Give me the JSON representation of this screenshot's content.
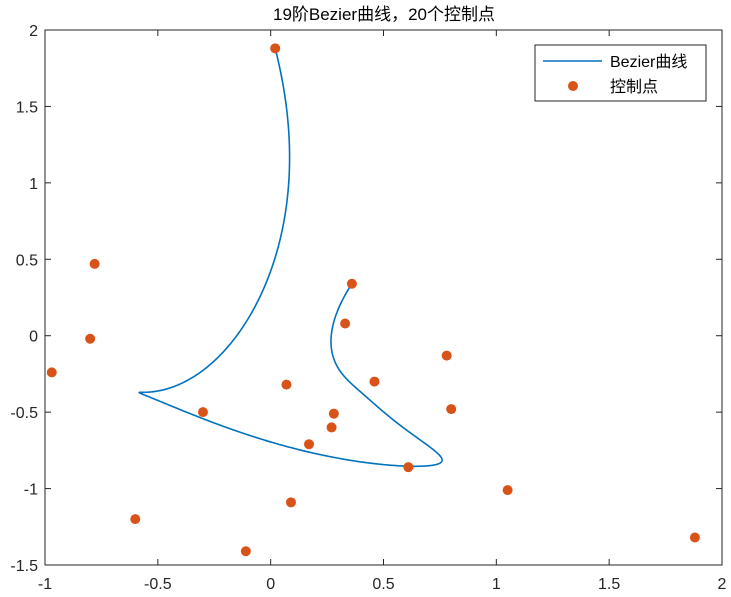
{
  "chart_data": {
    "type": "line+scatter",
    "title": "19阶Bezier曲线，20个控制点",
    "xlim": [
      -1,
      2
    ],
    "ylim": [
      -1.5,
      2
    ],
    "xticks": [
      "-1",
      "-0.5",
      "0",
      "0.5",
      "1",
      "1.5",
      "2"
    ],
    "yticks": [
      "2",
      "1.5",
      "1",
      "0.5",
      "0",
      "-0.5",
      "-1",
      "-1.5"
    ],
    "grid": false,
    "legend_position": "top-right",
    "series": [
      {
        "name": "Bezier曲线",
        "kind": "curve",
        "color": "#0072BD",
        "control_points_drawn_from": "控制点"
      },
      {
        "name": "控制点",
        "kind": "points",
        "color": "#D95319",
        "points": [
          [
            0.02,
            1.88
          ],
          [
            0.33,
            0.08
          ],
          [
            -0.3,
            -0.5
          ],
          [
            -0.6,
            -1.2
          ],
          [
            -0.97,
            -0.24
          ],
          [
            -0.78,
            0.47
          ],
          [
            -0.8,
            -0.02
          ],
          [
            -0.11,
            -1.41
          ],
          [
            0.09,
            -1.09
          ],
          [
            1.05,
            -1.01
          ],
          [
            0.8,
            -0.48
          ],
          [
            0.61,
            -0.86
          ],
          [
            1.88,
            -1.32
          ],
          [
            0.27,
            -0.6
          ],
          [
            0.17,
            -0.71
          ],
          [
            0.78,
            -0.13
          ],
          [
            0.28,
            -0.51
          ],
          [
            0.46,
            -0.3
          ],
          [
            0.07,
            -0.32
          ],
          [
            0.36,
            0.34
          ]
        ]
      }
    ]
  }
}
